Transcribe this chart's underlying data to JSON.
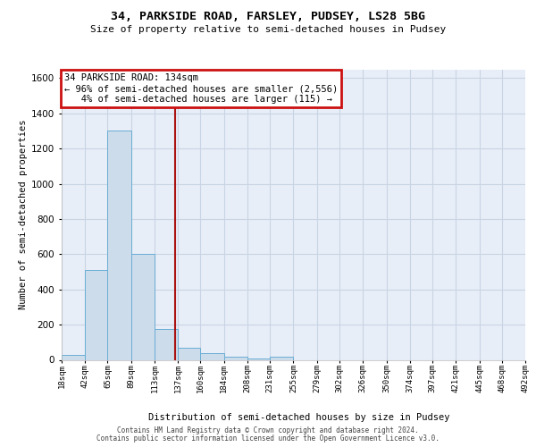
{
  "title": "34, PARKSIDE ROAD, FARSLEY, PUDSEY, LS28 5BG",
  "subtitle": "Size of property relative to semi-detached houses in Pudsey",
  "xlabel": "Distribution of semi-detached houses by size in Pudsey",
  "ylabel": "Number of semi-detached properties",
  "bar_color": "#ccdcea",
  "bar_edge_color": "#6aadd5",
  "grid_color": "#c8d4e4",
  "bg_color": "#e8eef8",
  "vline_color": "#aa1111",
  "vline_value": 134,
  "annotation_text": "34 PARKSIDE ROAD: 134sqm\n← 96% of semi-detached houses are smaller (2,556)\n   4% of semi-detached houses are larger (115) →",
  "annotation_box_color": "#cc1111",
  "bin_edges": [
    18,
    42,
    65,
    89,
    113,
    137,
    160,
    184,
    208,
    231,
    255,
    279,
    302,
    326,
    350,
    374,
    397,
    421,
    445,
    468,
    492
  ],
  "bar_heights": [
    28,
    510,
    1300,
    600,
    175,
    70,
    38,
    18,
    8,
    18,
    0,
    0,
    0,
    0,
    0,
    0,
    0,
    0,
    0,
    0
  ],
  "ylim": [
    0,
    1650
  ],
  "yticks": [
    0,
    200,
    400,
    600,
    800,
    1000,
    1200,
    1400,
    1600
  ],
  "footer_line1": "Contains HM Land Registry data © Crown copyright and database right 2024.",
  "footer_line2": "Contains public sector information licensed under the Open Government Licence v3.0."
}
